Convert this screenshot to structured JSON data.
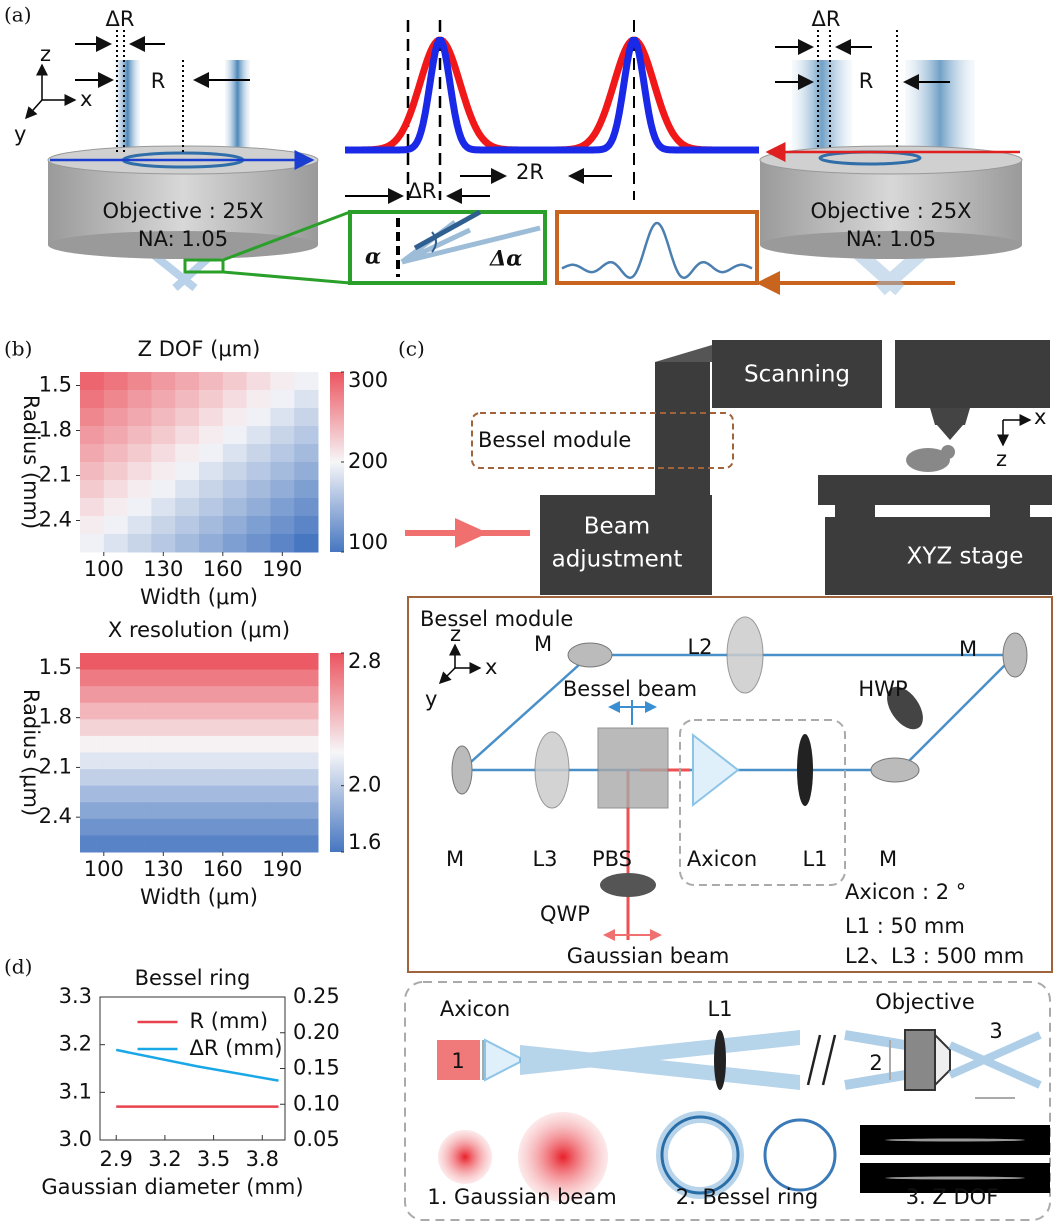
{
  "panel_labels": [
    "(a)",
    "(b)",
    "(c)",
    "(d)"
  ],
  "panel_a": {
    "left": {
      "delta_r": "ΔR",
      "r": "R",
      "z": "z",
      "x": "x",
      "y": "y",
      "objective": "Objective : 25X",
      "na": "NA:  1.05"
    },
    "center": {
      "two_r": "2R",
      "delta_r": "ΔR",
      "alpha": "α",
      "delta_alpha": "Δα"
    },
    "right": {
      "delta_r": "ΔR",
      "r": "R",
      "objective": "Objective : 25X",
      "na": "NA:  1.05"
    }
  },
  "panel_c": {
    "system": {
      "scanning": "Scanning",
      "bessel_module": "Bessel module",
      "beam_adjustment": [
        "Beam",
        "adjustment"
      ],
      "xyz_stage": "XYZ stage",
      "x": "x",
      "z": "z"
    },
    "module": {
      "title": "Bessel module",
      "z": "z",
      "x": "x",
      "y": "y",
      "m_top_left": "M",
      "l2": "L2",
      "m_top_right": "M",
      "hwp": "HWP",
      "bessel_beam": "Bessel beam",
      "m_left": "M",
      "l3": "L3",
      "pbs": "PBS",
      "axicon": "Axicon",
      "l1": "L1",
      "m_right": "M",
      "qwp": "QWP",
      "gaussian_beam": "Gaussian beam",
      "specs": [
        "Axicon : 2 °",
        "L1 : 50 mm",
        "L2、L3 : 500 mm"
      ]
    },
    "schematic": {
      "axicon": "Axicon",
      "l1": "L1",
      "objective": "Objective",
      "one": "1",
      "two": "2",
      "three": "3",
      "captions": [
        "1. Gaussian beam",
        "2. Bessel ring",
        "3. Z DOF"
      ]
    }
  },
  "chart_data": [
    {
      "type": "heatmap",
      "title": "Z DOF (μm)",
      "xlabel": "Width (μm)",
      "ylabel": "Radius (mm)",
      "xlim": [
        88,
        208
      ],
      "xticks": [
        100,
        130,
        160,
        190
      ],
      "ylim": [
        1.41,
        2.61
      ],
      "yticks": [
        1.5,
        1.8,
        2.1,
        2.4
      ],
      "clim": [
        100,
        300
      ],
      "cticks": [
        100,
        200,
        300
      ],
      "cmap": [
        "#4676c0",
        "#f6f6f8",
        "#ec5560"
      ],
      "values": [
        [
          290,
          280,
          269,
          258,
          248,
          238,
          227,
          216,
          206,
          196
        ],
        [
          280,
          269,
          258,
          248,
          238,
          227,
          216,
          206,
          196,
          185
        ],
        [
          269,
          258,
          248,
          238,
          227,
          216,
          206,
          196,
          185,
          174
        ],
        [
          258,
          248,
          238,
          227,
          216,
          206,
          196,
          185,
          174,
          164
        ],
        [
          248,
          238,
          227,
          216,
          206,
          196,
          185,
          174,
          164,
          154
        ],
        [
          238,
          227,
          216,
          206,
          196,
          185,
          174,
          164,
          154,
          143
        ],
        [
          227,
          216,
          206,
          196,
          185,
          174,
          164,
          154,
          143,
          132
        ],
        [
          216,
          206,
          196,
          185,
          174,
          164,
          154,
          143,
          132,
          122
        ],
        [
          206,
          196,
          185,
          174,
          164,
          154,
          143,
          132,
          122,
          112
        ],
        [
          196,
          185,
          174,
          164,
          154,
          143,
          132,
          122,
          112,
          101
        ]
      ]
    },
    {
      "type": "heatmap",
      "title": "X resolution (μm)",
      "xlabel": "Width (μm)",
      "ylabel": "Radius (μm)",
      "xlim": [
        88,
        208
      ],
      "xticks": [
        100,
        130,
        160,
        190
      ],
      "ylim": [
        1.41,
        2.61
      ],
      "yticks": [
        1.5,
        1.8,
        2.1,
        2.4
      ],
      "clim": [
        1.6,
        2.8
      ],
      "cticks": [
        1.6,
        {
          "value": 2,
          "label": "2.0"
        },
        2.8
      ],
      "cmap": [
        "#4676c0",
        "#f6f6f8",
        "#ec5560"
      ],
      "values": [
        [
          2.78,
          2.78,
          2.78,
          2.78,
          2.78,
          2.78,
          2.78,
          2.78,
          2.78,
          2.78
        ],
        [
          2.66,
          2.66,
          2.66,
          2.66,
          2.66,
          2.66,
          2.66,
          2.66,
          2.66,
          2.66
        ],
        [
          2.55,
          2.55,
          2.55,
          2.55,
          2.55,
          2.55,
          2.55,
          2.55,
          2.55,
          2.55
        ],
        [
          2.44,
          2.44,
          2.44,
          2.44,
          2.44,
          2.44,
          2.44,
          2.44,
          2.44,
          2.44
        ],
        [
          2.33,
          2.33,
          2.33,
          2.33,
          2.33,
          2.33,
          2.33,
          2.33,
          2.33,
          2.33
        ],
        [
          2.22,
          2.22,
          2.22,
          2.22,
          2.22,
          2.22,
          2.22,
          2.22,
          2.22,
          2.22
        ],
        [
          2.12,
          2.12,
          2.12,
          2.12,
          2.12,
          2.12,
          2.12,
          2.12,
          2.12,
          2.12
        ],
        [
          2.02,
          2.02,
          2.02,
          2.02,
          2.02,
          2.02,
          2.02,
          2.02,
          2.02,
          2.02
        ],
        [
          1.92,
          1.92,
          1.92,
          1.92,
          1.92,
          1.92,
          1.92,
          1.92,
          1.92,
          1.92
        ],
        [
          1.83,
          1.83,
          1.83,
          1.83,
          1.83,
          1.83,
          1.83,
          1.83,
          1.83,
          1.83
        ],
        [
          1.74,
          1.74,
          1.74,
          1.74,
          1.74,
          1.74,
          1.74,
          1.74,
          1.74,
          1.74
        ],
        [
          1.66,
          1.66,
          1.66,
          1.66,
          1.66,
          1.66,
          1.66,
          1.66,
          1.66,
          1.66
        ]
      ]
    },
    {
      "type": "line",
      "title": "Bessel ring",
      "xlabel": "Gaussian diameter (mm)",
      "x": [
        2.9,
        3.4,
        3.9
      ],
      "xlim": [
        2.8,
        3.94
      ],
      "xticks": [
        2.9,
        3.2,
        3.5,
        3.8
      ],
      "ylim": [
        3,
        3.3
      ],
      "yticks": [
        {
          "value": 3,
          "label": "3.0"
        },
        3.1,
        3.2,
        3.3
      ],
      "y2lim": [
        0.05,
        0.25
      ],
      "y2ticks": [
        0.05,
        {
          "value": 0.1,
          "label": "0.10"
        },
        0.15,
        {
          "value": 0.2,
          "label": "0.20"
        },
        0.25
      ],
      "legend": "upper center",
      "series": [
        {
          "name": "R (mm)",
          "color": "#e8424f",
          "values": [
            3.07,
            3.07,
            3.07
          ]
        },
        {
          "name": "ΔR (mm)",
          "color": "#1aa7e8",
          "axis": "y2",
          "values": [
            0.176,
            0.153,
            0.133
          ]
        }
      ]
    }
  ]
}
